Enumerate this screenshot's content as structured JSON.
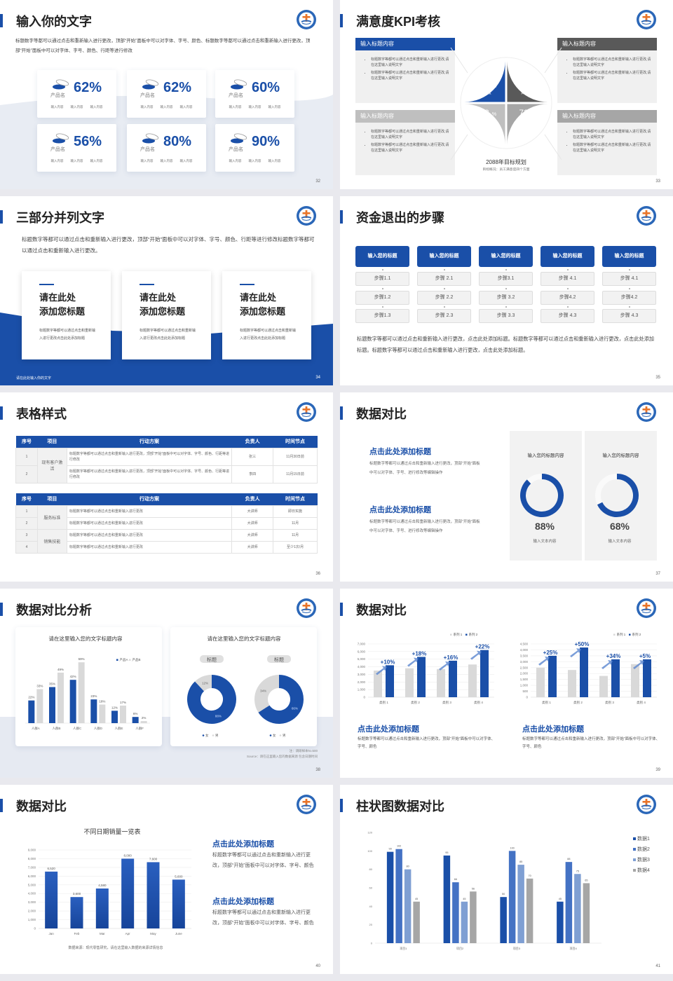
{
  "colors": {
    "primary": "#1a4fa8",
    "dark_gray": "#595959",
    "mid_gray": "#a6a6a6",
    "light_gray": "#d9d9d9",
    "logo_orange": "#e8742a"
  },
  "logo_icon": "hospital-emblem",
  "s32": {
    "title": "输入你的文字",
    "paragraph": "标题数字等都可以通过点击和重新输入进行更改，顶部“开始”面板中可以对字体、字号、颜色、标题数字等都可以通过点击和重新输入进行更改，顶部“开始”面板中可以对字体、字号、颜色、行距等进行修改",
    "page": "32",
    "cards": [
      {
        "value": "62%",
        "name": "产品名",
        "subs": [
          "输入内容",
          "输入内容",
          "输入内容"
        ]
      },
      {
        "value": "62%",
        "name": "产品名",
        "subs": [
          "输入内容",
          "输入内容",
          "输入内容"
        ]
      },
      {
        "value": "60%",
        "name": "产品名",
        "subs": [
          "输入内容",
          "输入内容",
          "输入内容"
        ]
      },
      {
        "value": "56%",
        "name": "产品名",
        "subs": [
          "输入内容",
          "输入内容",
          "输入内容"
        ]
      },
      {
        "value": "80%",
        "name": "产品名",
        "subs": [
          "输入内容",
          "输入内容",
          "输入内容"
        ]
      },
      {
        "value": "90%",
        "name": "产品名",
        "subs": [
          "输入内容",
          "输入内容",
          "输入内容"
        ]
      }
    ]
  },
  "s33": {
    "title": "满意度KPI考核",
    "page": "33",
    "boxes": [
      {
        "title": "输入标题内容",
        "color": "#1a4fa8",
        "bullets": [
          "标题数字等都可以通过点击和重新输入进行更改,请在这里输入说明文字",
          "标题数字等都可以通过点击和重新输入进行更改,请在这里输入说明文字"
        ]
      },
      {
        "title": "输入标题内容",
        "color": "#595959",
        "bullets": [
          "标题数字等都可以通过点击和重新输入进行更改,请在这里输入说明文字",
          "标题数字等都可以通过点击和重新输入进行更改,请在这里输入说明文字"
        ]
      },
      {
        "title": "输入标题内容",
        "color": "#bfbfbf",
        "bullets": [
          "标题数字等都可以通过点击和重新输入进行更改,请在这里输入说明文字",
          "标题数字等都可以通过点击和重新输入进行更改,请在这里输入说明文字"
        ]
      },
      {
        "title": "输入标题内容",
        "color": "#a6a6a6",
        "bullets": [
          "标题数字等都可以通过点击和重新输入进行更改,请在这里输入说明文字",
          "标题数字等都可以通过点击和重新输入进行更改,请在这里输入说明文字"
        ]
      }
    ],
    "quadrants": [
      {
        "value": "90",
        "unit": "%",
        "label": "满意度",
        "color": "#1a4fa8"
      },
      {
        "value": "80",
        "unit": "%",
        "label": "满意度",
        "color": "#595959"
      },
      {
        "value": "63",
        "unit": "%",
        "label": "满意度",
        "color": "#bfbfbf"
      },
      {
        "value": "72",
        "unit": "%",
        "label": "满意度",
        "color": "#a6a6a6"
      }
    ],
    "goal_title": "2088年目标规划",
    "goal_sub": "目标概况：员工满意度四个方面"
  },
  "s34": {
    "title": "三部分并列文字",
    "paragraph": "标题数字等都可以通过点击和重新输入进行更改，顶部“开始”面板中可以对字体、字号、颜色、行距等进行修改标题数字等都可以通过点击和重新输入进行更改。",
    "cards": [
      {
        "title": "请在此处\n添加您标题",
        "text": "标题数字等都可以通过点击和重新输入进行更改点击此处添加标题"
      },
      {
        "title": "请在此处\n添加您标题",
        "text": "标题数字等都可以通过点击和重新输入进行更改点击此处添加标题"
      },
      {
        "title": "请在此处\n添加您标题",
        "text": "标题数字等都可以通过点击和重新输入进行更改点击此处添加标题"
      }
    ],
    "footer": "请在此处输入你的文字",
    "page": "34"
  },
  "s35": {
    "title": "资金退出的步骤",
    "page": "35",
    "columns": [
      {
        "head": "输入您的标题",
        "steps": [
          "步骤1.1",
          "步骤1.2",
          "步骤1.3"
        ]
      },
      {
        "head": "输入您的标题",
        "steps": [
          "步骤 2.1",
          "步骤 2.2",
          "步骤 2.3"
        ]
      },
      {
        "head": "输入您的标题",
        "steps": [
          "步骤3.1",
          "步骤 3.2",
          "步骤 3.3"
        ]
      },
      {
        "head": "输入您的标题",
        "steps": [
          "步骤 4.1",
          "步骤4.2",
          "步骤 4.3"
        ]
      },
      {
        "head": "输入您的标题",
        "steps": [
          "步骤 4.1",
          "步骤4.2",
          "步骤 4.3"
        ]
      }
    ],
    "paragraph": "标题数字等都可以通过点击和重新输入进行更改，点击此处添加标题。标题数字等都可以通过点击和重新输入进行更改，点击此处添加标题。标题数字等都可以通过点击和重新输入进行更改，点击此处添加标题。"
  },
  "s36": {
    "title": "表格样式",
    "page": "36",
    "headers": [
      "序号",
      "项目",
      "行动方案",
      "负责人",
      "时间节点"
    ],
    "tables": [
      {
        "groups": [
          {
            "project": "现有客户激活",
            "rows": [
              {
                "no": "1",
                "plan": "标题数字等都可以通过点击和重新输入进行更改，顶部“开始”面板中可以对字体、字号、颜色、行距等进行修改",
                "owner": "张三",
                "deadline": "11月30日前"
              },
              {
                "no": "2",
                "plan": "标题数字等都可以通过点击和重新输入进行更改，顶部“开始”面板中可以对字体、字号、颜色、行距等进行修改",
                "owner": "李四",
                "deadline": "11月15日前"
              }
            ]
          }
        ]
      },
      {
        "groups": [
          {
            "project": "服务标准",
            "rows": [
              {
                "no": "1",
                "plan": "标题数字等都可以通过点击和重新输入进行更改",
                "owner": "大讲师",
                "deadline": "即日实施"
              },
              {
                "no": "2",
                "plan": "标题数字等都可以通过点击和重新输入进行更改",
                "owner": "大讲师",
                "deadline": "11月"
              }
            ]
          },
          {
            "project": "销售技能",
            "rows": [
              {
                "no": "3",
                "plan": "标题数字等都可以通过点击和重新输入进行更改",
                "owner": "大讲师",
                "deadline": "11月"
              },
              {
                "no": "4",
                "plan": "标题数字等都可以通过点击和重新输入进行更改",
                "owner": "大讲师",
                "deadline": "至少1次/月"
              }
            ]
          }
        ]
      }
    ]
  },
  "s37": {
    "title": "数据对比",
    "page": "37",
    "blocks": [
      {
        "heading": "点击此处添加标题",
        "text": "标题数字等都可以通过点击和重新输入进行更改，顶部“开始”面板中可以对字体、字号、进行修改等编辑操作"
      },
      {
        "heading": "点击此处添加标题",
        "text": "标题数字等都可以通过点击和重新输入进行更改，顶部“开始”面板中可以对字体、字号、进行修改等编辑操作"
      }
    ],
    "cards": [
      {
        "title": "输入您的标题内容",
        "value": 88,
        "value_label": "88%",
        "caption": "输入文本内容"
      },
      {
        "title": "输入您的标题内容",
        "value": 68,
        "value_label": "68%",
        "caption": "输入文本内容"
      }
    ]
  },
  "s38": {
    "title": "数据对比分析",
    "page": "38",
    "card1_title": "请在这里输入您的文字标题内容",
    "card2_title": "请在这里输入您的文字标题内容",
    "note": "注：调研样本N=500",
    "source": "Source：请在这里输入您的数据来源 包含日期时间"
  },
  "s39": {
    "title": "数据对比",
    "page": "39",
    "blocks": [
      {
        "heading": "点击此处添加标题",
        "text": "标题数字等都可以通过点击和重新输入进行更改，顶部“开始”面板中可以对字体、字号、颜色"
      },
      {
        "heading": "点击此处添加标题",
        "text": "标题数字等都可以通过点击和重新输入进行更改，顶部“开始”面板中可以对字体、字号、颜色"
      }
    ]
  },
  "s40": {
    "title": "数据对比",
    "page": "40",
    "blocks": [
      {
        "heading": "点击此处添加标题",
        "text": "标题数字等都可以通过点击和重新输入进行更改，顶部“开始”面板中可以对字体、字号、颜色"
      },
      {
        "heading": "点击此处添加标题",
        "text": "标题数字等都可以通过点击和重新输入进行更改，顶部“开始”面板中可以对字体、字号、颜色"
      }
    ]
  },
  "s41": {
    "title": "柱状图数据对比",
    "page": "41"
  },
  "chart_data": [
    {
      "type": "bar",
      "title": "请在这里输入您的文字标题内容",
      "categories": [
        "人群A",
        "人群B",
        "人群C",
        "人群D",
        "人群E",
        "人群F"
      ],
      "series": [
        {
          "name": "产品A",
          "color": "#1a4fa8",
          "values": [
            22,
            35,
            42,
            23,
            12,
            6
          ],
          "labels": [
            "22%",
            "35%",
            "42%",
            "23%",
            "12%",
            "6%"
          ]
        },
        {
          "name": "产品B",
          "color": "#d9d9d9",
          "values": [
            33,
            49,
            59,
            18,
            17,
            2
          ],
          "labels": [
            "33%",
            "49%",
            "59%",
            "18%",
            "17%",
            "2%"
          ]
        }
      ],
      "ylim": [
        0,
        70
      ],
      "grid": false,
      "legend": "top-right"
    },
    {
      "type": "pie",
      "donut": true,
      "tag": "标题",
      "slices": [
        {
          "name": "女",
          "value": 88,
          "label": "88%",
          "color": "#1a4fa8"
        },
        {
          "name": "男",
          "value": 12,
          "label": "12%",
          "color": "#d9d9d9"
        }
      ],
      "legend": "bottom"
    },
    {
      "type": "pie",
      "donut": true,
      "tag": "标题",
      "slices": [
        {
          "name": "女",
          "value": 66,
          "label": "66%",
          "color": "#1a4fa8"
        },
        {
          "name": "男",
          "value": 34,
          "label": "34%",
          "color": "#d9d9d9"
        }
      ],
      "legend": "bottom"
    },
    {
      "type": "bar",
      "categories": [
        "类别 1",
        "类别 2",
        "类别 3",
        "类别 4"
      ],
      "series": [
        {
          "name": "系列 1",
          "color": "#d9d9d9",
          "values": [
            3500,
            3800,
            3700,
            4300
          ]
        },
        {
          "name": "系列 2",
          "color": "#1a4fa8",
          "values": [
            4200,
            5300,
            4800,
            6200
          ]
        }
      ],
      "ylim": [
        0,
        7000
      ],
      "yticks": [
        "0",
        "1,000",
        "2,000",
        "3,000",
        "4,000",
        "5,000",
        "6,000",
        "7,000"
      ],
      "annotations": [
        "+10%",
        "+18%",
        "+16%",
        "+22%"
      ],
      "grid": true,
      "legend": "top-right"
    },
    {
      "type": "bar",
      "categories": [
        "类别 1",
        "类别 2",
        "类别 3",
        "类别 4"
      ],
      "series": [
        {
          "name": "系列 1",
          "color": "#d9d9d9",
          "values": [
            2500,
            2300,
            1800,
            2800
          ]
        },
        {
          "name": "系列 2",
          "color": "#1a4fa8",
          "values": [
            3500,
            4200,
            3200,
            3200
          ]
        }
      ],
      "ylim": [
        0,
        4500
      ],
      "yticks": [
        "0",
        "500",
        "1,000",
        "1,500",
        "2,000",
        "2,500",
        "3,000",
        "3,500",
        "4,000",
        "4,500"
      ],
      "annotations": [
        "+25%",
        "+50%",
        "+34%",
        "+5%"
      ],
      "grid": true,
      "legend": "top-right"
    },
    {
      "type": "bar",
      "title": "不同日期销量一览表",
      "categories": [
        "Jan",
        "Feb",
        "Mar",
        "Apr",
        "May",
        "June"
      ],
      "series": [
        {
          "color": "#1a4fa8",
          "values": [
            6520,
            3600,
            4580,
            8000,
            7600,
            5600
          ],
          "labels": [
            "6,520",
            "3,600",
            "4,580",
            "8,000",
            "7,600",
            "5,600"
          ]
        }
      ],
      "ylim": [
        0,
        9000
      ],
      "yticks": [
        "0",
        "1,000",
        "2,000",
        "3,000",
        "4,000",
        "5,000",
        "6,000",
        "7,000",
        "8,000",
        "9,000"
      ],
      "grid": true,
      "source": "数据来源：现代零售研究，请在这里输入数据的来源详情信息"
    },
    {
      "type": "bar",
      "categories": [
        "项目1",
        "项目2",
        "项目3",
        "项目4"
      ],
      "series": [
        {
          "name": "数据1",
          "color": "#1a4fa8",
          "values": [
            99,
            95,
            50,
            45
          ]
        },
        {
          "name": "数据2",
          "color": "#4472c4",
          "values": [
            102,
            66,
            100,
            88
          ]
        },
        {
          "name": "数据3",
          "color": "#7f9fd3",
          "values": [
            80,
            45,
            85,
            75
          ]
        },
        {
          "name": "数据4",
          "color": "#a6a6a6",
          "values": [
            45,
            56,
            70,
            65
          ]
        }
      ],
      "ylim": [
        0,
        120
      ],
      "yticks": [
        "0",
        "20",
        "40",
        "60",
        "80",
        "100",
        "120"
      ],
      "grid": false,
      "legend": "right"
    }
  ]
}
